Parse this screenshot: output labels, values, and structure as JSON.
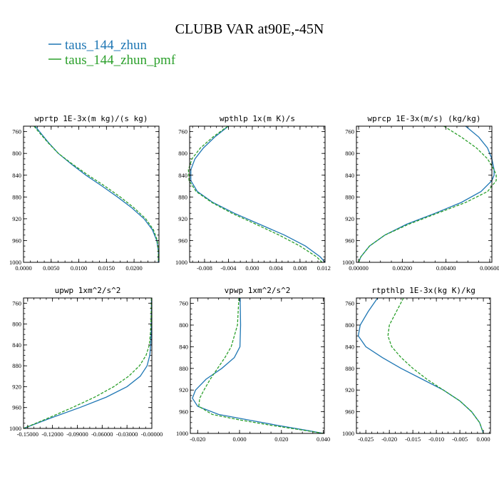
{
  "figure": {
    "title": "CLUBB VAR at90E,-45N",
    "legend": [
      {
        "label": "taus_144_zhun",
        "color": "#1f77b4",
        "dash": "solid"
      },
      {
        "label": "taus_144_zhun_pmf",
        "color": "#2ca02c",
        "dash": "dashed"
      }
    ]
  },
  "chart_data": [
    {
      "type": "line",
      "title": "wprtp  1E-3x(m kg)/(s kg)",
      "xlim": [
        0.0,
        0.0245
      ],
      "ylim": [
        750,
        1000
      ],
      "y_reversed": true,
      "xticks": [
        0.0,
        0.005,
        0.01,
        0.015,
        0.02
      ],
      "xtick_labels": [
        "0.0000",
        "0.0050",
        "0.0100",
        "0.0150",
        "0.0200"
      ],
      "yticks": [
        760,
        800,
        840,
        880,
        920,
        960,
        1000
      ],
      "ytick_labels": [
        "760",
        "800",
        "840",
        "880",
        "920",
        "960",
        "1000"
      ],
      "y": [
        750,
        760,
        780,
        800,
        820,
        840,
        860,
        880,
        900,
        920,
        940,
        960,
        980,
        1000
      ],
      "series": [
        {
          "name": "taus_144_zhun",
          "x": [
            0.0021,
            0.0029,
            0.0045,
            0.0063,
            0.0087,
            0.0113,
            0.0142,
            0.017,
            0.0196,
            0.0218,
            0.0233,
            0.0241,
            0.0244,
            0.0244
          ]
        },
        {
          "name": "taus_144_zhun_pmf",
          "x": [
            0.0019,
            0.0027,
            0.0044,
            0.0063,
            0.0089,
            0.0117,
            0.0147,
            0.0175,
            0.02,
            0.0221,
            0.0235,
            0.0242,
            0.0244,
            0.0244
          ]
        }
      ]
    },
    {
      "type": "line",
      "title": "wpthlp  1x(m K)/s",
      "xlim": [
        -0.0105,
        0.0122
      ],
      "ylim": [
        750,
        1000
      ],
      "y_reversed": true,
      "xticks": [
        -0.008,
        -0.004,
        0.0,
        0.004,
        0.008,
        0.012
      ],
      "xtick_labels": [
        "-0.008",
        "-0.004",
        "0.000",
        "0.004",
        "0.008",
        "0.012"
      ],
      "yticks": [
        760,
        800,
        840,
        880,
        920,
        960,
        1000
      ],
      "ytick_labels": [
        "760",
        "800",
        "840",
        "880",
        "920",
        "960",
        "1000"
      ],
      "y": [
        750,
        770,
        790,
        810,
        830,
        850,
        870,
        890,
        910,
        930,
        950,
        970,
        990,
        1000
      ],
      "series": [
        {
          "name": "taus_144_zhun",
          "x": [
            -0.004,
            -0.0063,
            -0.0082,
            -0.0096,
            -0.0103,
            -0.0103,
            -0.0092,
            -0.0066,
            -0.003,
            0.0012,
            0.0054,
            0.0089,
            0.0114,
            0.0122
          ]
        },
        {
          "name": "taus_144_zhun_pmf",
          "x": [
            -0.0041,
            -0.0066,
            -0.0087,
            -0.0101,
            -0.0107,
            -0.0106,
            -0.0094,
            -0.0068,
            -0.0034,
            0.0006,
            0.0045,
            0.008,
            0.0108,
            0.0117
          ]
        }
      ]
    },
    {
      "type": "line",
      "title": "wprcp  1E-3x(m/s) (kg/kg)",
      "xlim": [
        -0.0001,
        0.0061
      ],
      "ylim": [
        750,
        1000
      ],
      "y_reversed": true,
      "xticks": [
        0.0,
        0.002,
        0.004,
        0.006
      ],
      "xtick_labels": [
        "0.00000",
        "0.00200",
        "0.00400",
        "0.00600"
      ],
      "yticks": [
        760,
        800,
        840,
        880,
        920,
        960,
        1000
      ],
      "ytick_labels": [
        "760",
        "800",
        "840",
        "880",
        "920",
        "960",
        "1000"
      ],
      "y": [
        750,
        770,
        790,
        810,
        830,
        840,
        850,
        870,
        890,
        910,
        930,
        950,
        970,
        990,
        1000
      ],
      "series": [
        {
          "name": "taus_144_zhun",
          "x": [
            0.0049,
            0.0055,
            0.0059,
            0.0061,
            0.0062,
            0.0062,
            0.0061,
            0.0056,
            0.0047,
            0.0035,
            0.0022,
            0.0012,
            0.0005,
            0.0001,
            0.0
          ]
        },
        {
          "name": "taus_144_zhun_pmf",
          "x": [
            0.0039,
            0.0047,
            0.0054,
            0.0059,
            0.0062,
            0.0063,
            0.0063,
            0.0059,
            0.0049,
            0.0036,
            0.0023,
            0.0012,
            0.0005,
            0.0001,
            0.0
          ]
        }
      ]
    },
    {
      "type": "line",
      "title": "upwp  1xm^2/s^2",
      "xlim": [
        -0.155,
        0.0
      ],
      "ylim": [
        750,
        1000
      ],
      "y_reversed": true,
      "xticks": [
        -0.15,
        -0.12,
        -0.09,
        -0.06,
        -0.03,
        0.0
      ],
      "xtick_labels": [
        "-0.15000",
        "-0.12000",
        "-0.09000",
        "-0.06000",
        "-0.03000",
        "-0.00000"
      ],
      "yticks": [
        760,
        800,
        840,
        880,
        920,
        960,
        1000
      ],
      "ytick_labels": [
        "760",
        "800",
        "840",
        "880",
        "920",
        "960",
        "1000"
      ],
      "y": [
        750,
        780,
        810,
        840,
        860,
        880,
        900,
        920,
        940,
        960,
        980,
        1000
      ],
      "series": [
        {
          "name": "taus_144_zhun",
          "x": [
            -0.0004,
            -0.0006,
            -0.0008,
            -0.0013,
            -0.0025,
            -0.0058,
            -0.014,
            -0.03,
            -0.055,
            -0.087,
            -0.122,
            -0.155
          ]
        },
        {
          "name": "taus_144_zhun_pmf",
          "x": [
            -0.0005,
            -0.0008,
            -0.0013,
            -0.003,
            -0.007,
            -0.015,
            -0.028,
            -0.046,
            -0.069,
            -0.096,
            -0.125,
            -0.155
          ]
        }
      ]
    },
    {
      "type": "line",
      "title": "vpwp  1xm^2/s^2",
      "xlim": [
        -0.0235,
        0.0405
      ],
      "ylim": [
        750,
        1000
      ],
      "y_reversed": true,
      "xticks": [
        -0.02,
        0.0,
        0.02,
        0.04
      ],
      "xtick_labels": [
        "-0.020",
        "0.000",
        "0.020",
        "0.040"
      ],
      "yticks": [
        760,
        800,
        840,
        880,
        920,
        960,
        1000
      ],
      "ytick_labels": [
        "760",
        "800",
        "840",
        "880",
        "920",
        "960",
        "1000"
      ],
      "y": [
        750,
        800,
        840,
        860,
        880,
        900,
        920,
        935,
        950,
        965,
        975,
        985,
        995,
        1000
      ],
      "series": [
        {
          "name": "taus_144_zhun",
          "x": [
            0.0003,
            0.0005,
            0.0002,
            -0.0025,
            -0.0085,
            -0.016,
            -0.021,
            -0.0225,
            -0.02,
            -0.01,
            0.004,
            0.018,
            0.033,
            0.04
          ]
        },
        {
          "name": "taus_144_zhun_pmf",
          "x": [
            -0.0003,
            -0.001,
            -0.004,
            -0.007,
            -0.0105,
            -0.014,
            -0.017,
            -0.019,
            -0.0195,
            -0.013,
            0.0,
            0.015,
            0.032,
            0.04
          ]
        }
      ]
    },
    {
      "type": "line",
      "title": "rtpthlp  1E-3x(kg K)/kg",
      "xlim": [
        -0.027,
        0.0015
      ],
      "ylim": [
        750,
        1000
      ],
      "y_reversed": true,
      "xticks": [
        -0.025,
        -0.02,
        -0.015,
        -0.01,
        -0.005,
        0.0
      ],
      "xtick_labels": [
        "-0.025",
        "-0.020",
        "-0.015",
        "-0.010",
        "-0.005",
        "0.000"
      ],
      "yticks": [
        760,
        800,
        840,
        880,
        920,
        960,
        1000
      ],
      "ytick_labels": [
        "760",
        "800",
        "840",
        "880",
        "920",
        "960",
        "1000"
      ],
      "y": [
        750,
        775,
        800,
        820,
        840,
        860,
        880,
        900,
        920,
        940,
        960,
        980,
        1000
      ],
      "series": [
        {
          "name": "taus_144_zhun",
          "x": [
            -0.0225,
            -0.0245,
            -0.0262,
            -0.0266,
            -0.025,
            -0.0215,
            -0.0175,
            -0.013,
            -0.0085,
            -0.005,
            -0.0025,
            -0.0008,
            0.0
          ]
        },
        {
          "name": "taus_144_zhun_pmf",
          "x": [
            -0.017,
            -0.0185,
            -0.02,
            -0.0203,
            -0.0195,
            -0.0175,
            -0.015,
            -0.012,
            -0.0085,
            -0.005,
            -0.0025,
            -0.0008,
            0.0
          ]
        }
      ]
    }
  ]
}
